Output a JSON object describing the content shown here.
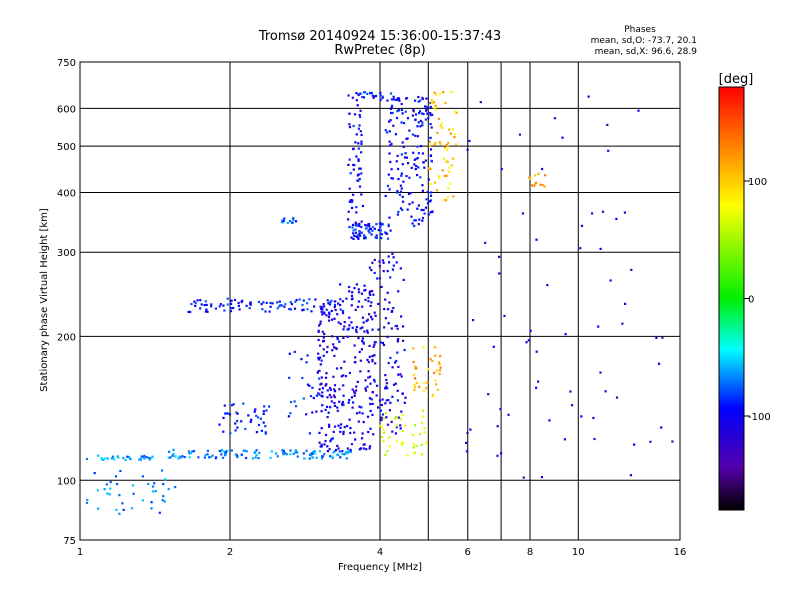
{
  "chart_data": {
    "type": "scatter",
    "title": "Tromsø 20140924 15:36:00-15:37:43",
    "subtitle": "RwPretec (8p)",
    "xlabel": "Frequency [MHz]",
    "ylabel": "Stationary phase Virtual Height [km]",
    "x_scale": "log",
    "y_scale": "log",
    "xlim": [
      1,
      16
    ],
    "ylim": [
      75,
      750
    ],
    "x_ticks": [
      1,
      2,
      4,
      6,
      8,
      10,
      16
    ],
    "x_tick_labels": [
      "1",
      "2",
      "4",
      "6",
      "8",
      "10",
      "16"
    ],
    "x_minor_ticks": [
      5,
      7
    ],
    "y_ticks": [
      75,
      100,
      200,
      300,
      400,
      500,
      600,
      750
    ],
    "y_tick_labels": [
      "75",
      "100",
      "200",
      "300",
      "400",
      "500",
      "600",
      "750"
    ],
    "grid": true,
    "stats": {
      "heading": "Phases",
      "line1": "mean, sd,O: -73.7, 20.1",
      "line2": "mean, sd,X:  96.6, 28.9"
    },
    "colorbar": {
      "label": "[deg]",
      "range": [
        -180,
        180
      ],
      "ticks": [
        100,
        0,
        -100
      ],
      "tick_labels": [
        "100",
        "0",
        "-100"
      ],
      "colors": [
        "#ff0000",
        "#ff8000",
        "#ffff00",
        "#00ff00",
        "#00ffff",
        "#0000ff",
        "#6600aa",
        "#000000"
      ]
    },
    "point_groups": [
      {
        "name": "",
        "phase": -65,
        "f": [
          1.03,
          1.4
        ],
        "h": [
          110,
          113
        ],
        "n": 30
      },
      {
        "name": "",
        "phase": -75,
        "f": [
          1.03,
          1.6
        ],
        "h": [
          85,
          105
        ],
        "n": 40
      },
      {
        "name": "",
        "phase": -70,
        "f": [
          1.5,
          3.5
        ],
        "h": [
          111,
          116
        ],
        "n": 120
      },
      {
        "name": "",
        "phase": -100,
        "f": [
          1.9,
          2.4
        ],
        "h": [
          125,
          145
        ],
        "n": 40
      },
      {
        "name": "",
        "phase": -95,
        "f": [
          1.65,
          3.4
        ],
        "h": [
          225,
          240
        ],
        "n": 90
      },
      {
        "name": "",
        "phase": -95,
        "f": [
          2.6,
          3.1
        ],
        "h": [
          125,
          190
        ],
        "n": 30
      },
      {
        "name": "",
        "phase": -115,
        "f": [
          3.0,
          3.3
        ],
        "h": [
          115,
          240
        ],
        "n": 110
      },
      {
        "name": "",
        "phase": -110,
        "f": [
          3.3,
          3.9
        ],
        "h": [
          115,
          260
        ],
        "n": 160
      },
      {
        "name": "",
        "phase": -105,
        "f": [
          3.45,
          3.7
        ],
        "h": [
          320,
          650
        ],
        "n": 70
      },
      {
        "name": "",
        "phase": -95,
        "f": [
          3.5,
          4.2
        ],
        "h": [
          320,
          345
        ],
        "n": 60
      },
      {
        "name": "",
        "phase": -105,
        "f": [
          4.1,
          5.1
        ],
        "h": [
          340,
          640
        ],
        "n": 180
      },
      {
        "name": "",
        "phase": -110,
        "f": [
          3.8,
          4.5
        ],
        "h": [
          125,
          300
        ],
        "n": 120
      },
      {
        "name": "",
        "phase": -80,
        "f": [
          2.5,
          2.8
        ],
        "h": [
          345,
          355
        ],
        "n": 12
      },
      {
        "name": "",
        "phase": -95,
        "f": [
          3.6,
          4.3
        ],
        "h": [
          625,
          650
        ],
        "n": 20
      },
      {
        "name": "",
        "phase": 75,
        "f": [
          4.0,
          5.0
        ],
        "h": [
          112,
          140
        ],
        "n": 40
      },
      {
        "name": "",
        "phase": 110,
        "f": [
          4.6,
          5.3
        ],
        "h": [
          150,
          190
        ],
        "n": 35
      },
      {
        "name": "",
        "phase": 105,
        "f": [
          5.0,
          5.7
        ],
        "h": [
          380,
          650
        ],
        "n": 60
      },
      {
        "name": "",
        "phase": 110,
        "f": [
          7.8,
          8.6
        ],
        "h": [
          410,
          440
        ],
        "n": 12
      },
      {
        "name": "",
        "phase": -120,
        "f": [
          5.7,
          15.5
        ],
        "h": [
          100,
          650
        ],
        "n": 70
      }
    ]
  }
}
